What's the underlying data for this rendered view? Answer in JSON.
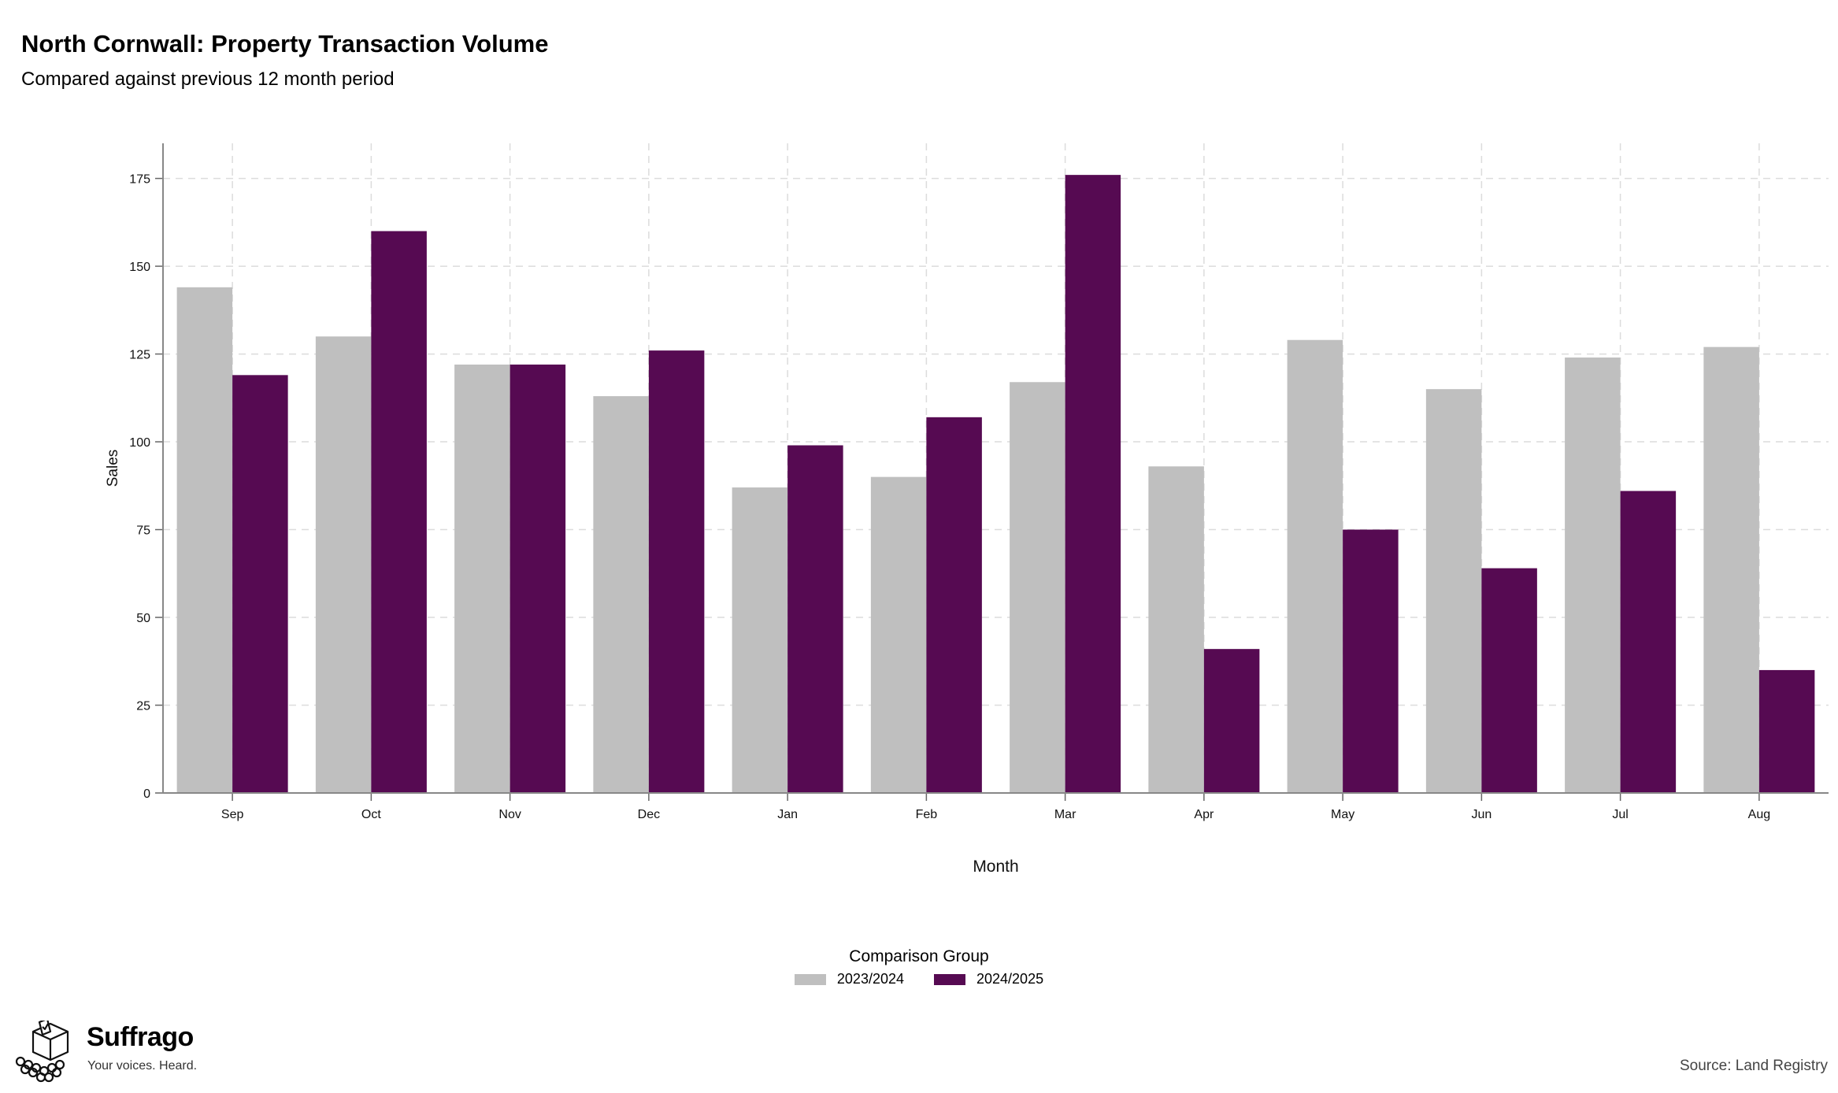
{
  "header": {
    "title": "North Cornwall: Property Transaction Volume",
    "subtitle": "Compared against previous 12 month period"
  },
  "chart_data": {
    "type": "bar",
    "title": "North Cornwall: Property Transaction Volume",
    "subtitle": "Compared against previous 12 month period",
    "xlabel": "Month",
    "ylabel": "Sales",
    "categories": [
      "Sep",
      "Oct",
      "Nov",
      "Dec",
      "Jan",
      "Feb",
      "Mar",
      "Apr",
      "May",
      "Jun",
      "Jul",
      "Aug"
    ],
    "series": [
      {
        "name": "2023/2024",
        "color": "#bfbfbf",
        "values": [
          144,
          130,
          122,
          113,
          87,
          90,
          117,
          93,
          129,
          115,
          124,
          127
        ]
      },
      {
        "name": "2024/2025",
        "color": "#560a52",
        "values": [
          119,
          160,
          122,
          126,
          99,
          107,
          176,
          41,
          75,
          64,
          86,
          35
        ]
      }
    ],
    "yticks": [
      0,
      25,
      50,
      75,
      100,
      125,
      150,
      175
    ],
    "ylim": [
      0,
      185
    ],
    "grid": true,
    "legend_title": "Comparison Group",
    "legend_position": "bottom"
  },
  "footer": {
    "brand": "Suffrago",
    "tagline": "Your voices. Heard.",
    "source": "Source: Land Registry"
  },
  "icons": {
    "logo": "ballot-box-icon"
  }
}
